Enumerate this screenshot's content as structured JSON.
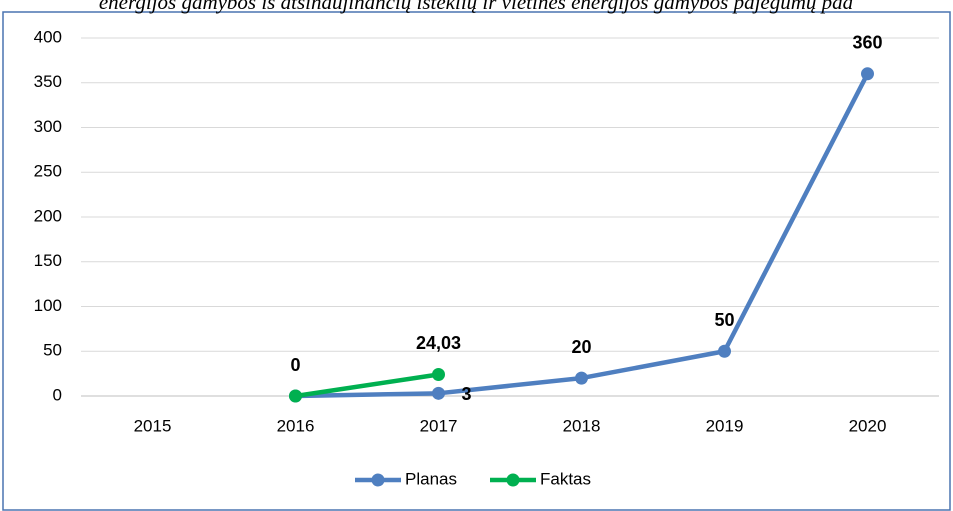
{
  "chart_data": {
    "type": "line",
    "title": "energijos gamybos iš atsinaujinančių išteklių ir vietinės energijos gamybos pajėgumų pad",
    "categories": [
      "2015",
      "2016",
      "2017",
      "2018",
      "2019",
      "2020"
    ],
    "series": [
      {
        "name": "Planas",
        "color": "#4f7fc0",
        "values": [
          null,
          0,
          3,
          20,
          50,
          360
        ]
      },
      {
        "name": "Faktas",
        "color": "#00b050",
        "values": [
          null,
          0,
          24.03,
          null,
          null,
          null
        ],
        "value_labels": [
          null,
          null,
          "24,03",
          null,
          null,
          null
        ]
      }
    ],
    "ylim": [
      0,
      400
    ],
    "yticks": [
      0,
      50,
      100,
      150,
      200,
      250,
      300,
      350,
      400
    ],
    "grid": true,
    "legend": "bottom"
  }
}
